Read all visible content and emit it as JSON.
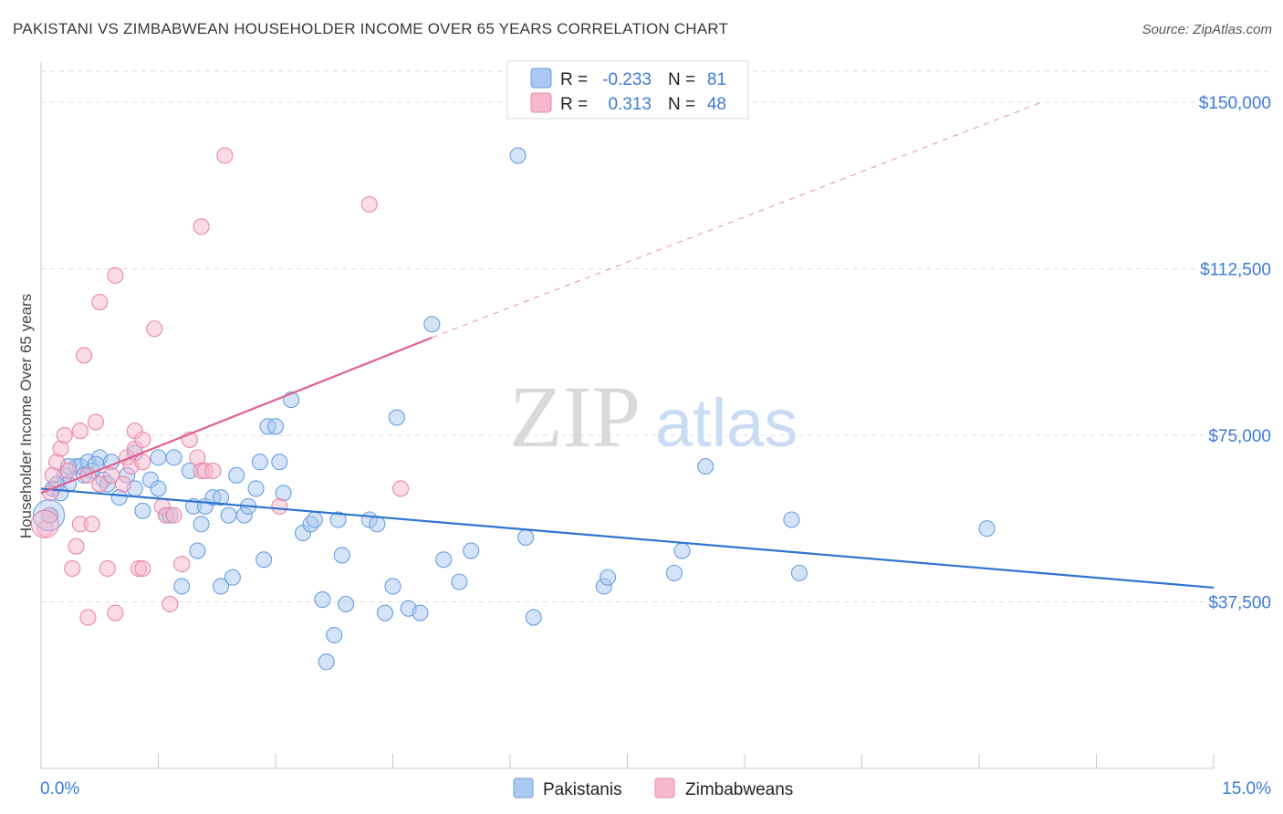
{
  "header": {
    "title": "PAKISTANI VS ZIMBABWEAN HOUSEHOLDER INCOME OVER 65 YEARS CORRELATION CHART",
    "source": "Source: ZipAtlas.com"
  },
  "legend_top": {
    "rows": [
      {
        "r_label": "R =",
        "r_value": "-0.233",
        "n_label": "N =",
        "n_value": "81",
        "color": "#aac8f2"
      },
      {
        "r_label": "R =",
        "r_value": "0.313",
        "n_label": "N =",
        "n_value": "48",
        "color": "#f7b8cc"
      }
    ]
  },
  "legend_bottom": [
    {
      "label": "Pakistanis",
      "color": "#aac8f2"
    },
    {
      "label": "Zimbabweans",
      "color": "#f7b8cc"
    }
  ],
  "watermark": {
    "zip": "ZIP",
    "atlas": "atlas"
  },
  "chart_data": {
    "type": "scatter",
    "title": "PAKISTANI VS ZIMBABWEAN HOUSEHOLDER INCOME OVER 65 YEARS CORRELATION CHART",
    "xlabel": "",
    "ylabel": "Householder Income Over 65 years",
    "xlim": [
      0,
      15
    ],
    "ylim": [
      0,
      157000
    ],
    "x_tick_labels": [
      "0.0%",
      "15.0%"
    ],
    "y_ticks": [
      37500,
      75000,
      112500,
      150000
    ],
    "y_tick_labels": [
      "$37,500",
      "$75,000",
      "$112,500",
      "$150,000"
    ],
    "grid": true,
    "legend_position": "top-center",
    "series": [
      {
        "name": "Pakistanis",
        "color": "#6a9fe0",
        "fill": "#aac8f2",
        "trend": {
          "x0": 0,
          "y0": 63000,
          "x1": 15,
          "y1": 40700
        },
        "points": [
          [
            0.12,
            57000
          ],
          [
            0.15,
            63000
          ],
          [
            0.3,
            66000
          ],
          [
            0.35,
            64000
          ],
          [
            0.45,
            68000
          ],
          [
            0.5,
            68000
          ],
          [
            0.6,
            69000
          ],
          [
            0.65,
            67000
          ],
          [
            0.75,
            70000
          ],
          [
            0.8,
            65000
          ],
          [
            0.9,
            69000
          ],
          [
            1.0,
            61000
          ],
          [
            1.1,
            66000
          ],
          [
            1.2,
            63000
          ],
          [
            1.2,
            71000
          ],
          [
            1.3,
            58000
          ],
          [
            1.4,
            65000
          ],
          [
            1.5,
            63000
          ],
          [
            1.5,
            70000
          ],
          [
            1.6,
            57000
          ],
          [
            1.65,
            57000
          ],
          [
            1.7,
            70000
          ],
          [
            1.8,
            41000
          ],
          [
            1.9,
            67000
          ],
          [
            1.95,
            59000
          ],
          [
            2.0,
            49000
          ],
          [
            2.05,
            55000
          ],
          [
            2.1,
            59000
          ],
          [
            2.2,
            61000
          ],
          [
            2.3,
            61000
          ],
          [
            2.3,
            41000
          ],
          [
            2.4,
            57000
          ],
          [
            2.45,
            43000
          ],
          [
            2.5,
            66000
          ],
          [
            2.6,
            57000
          ],
          [
            2.65,
            59000
          ],
          [
            2.75,
            63000
          ],
          [
            2.8,
            69000
          ],
          [
            2.85,
            47000
          ],
          [
            2.9,
            77000
          ],
          [
            3.0,
            77000
          ],
          [
            3.05,
            69000
          ],
          [
            3.1,
            62000
          ],
          [
            3.2,
            83000
          ],
          [
            3.35,
            53000
          ],
          [
            3.45,
            55000
          ],
          [
            3.5,
            56000
          ],
          [
            3.6,
            38000
          ],
          [
            3.75,
            30000
          ],
          [
            3.8,
            56000
          ],
          [
            3.85,
            48000
          ],
          [
            3.9,
            37000
          ],
          [
            4.2,
            56000
          ],
          [
            4.3,
            55000
          ],
          [
            4.4,
            35000
          ],
          [
            4.5,
            41000
          ],
          [
            4.55,
            79000
          ],
          [
            4.7,
            36000
          ],
          [
            4.85,
            35000
          ],
          [
            5.0,
            100000
          ],
          [
            5.15,
            47000
          ],
          [
            5.35,
            42000
          ],
          [
            5.5,
            49000
          ],
          [
            6.1,
            138000
          ],
          [
            6.2,
            52000
          ],
          [
            6.3,
            34000
          ],
          [
            7.2,
            41000
          ],
          [
            7.25,
            43000
          ],
          [
            8.1,
            44000
          ],
          [
            8.2,
            49000
          ],
          [
            8.5,
            68000
          ],
          [
            9.6,
            56000
          ],
          [
            9.7,
            44000
          ],
          [
            12.1,
            54000
          ],
          [
            0.2,
            64000
          ],
          [
            0.25,
            62000
          ],
          [
            0.55,
            66000
          ],
          [
            0.7,
            68500
          ],
          [
            3.65,
            24000
          ],
          [
            0.35,
            68000
          ],
          [
            0.85,
            64000
          ]
        ]
      },
      {
        "name": "Zimbabweans",
        "color": "#e888a8",
        "fill": "#f7b8cc",
        "trend": {
          "x0": 0,
          "y0": 62000,
          "x1": 5.0,
          "y1": 97000
        },
        "trend_dashed_to": {
          "x": 12.8,
          "y": 150000
        },
        "points": [
          [
            0.05,
            54000
          ],
          [
            0.1,
            57000
          ],
          [
            0.12,
            62000
          ],
          [
            0.15,
            66000
          ],
          [
            0.2,
            69000
          ],
          [
            0.25,
            72000
          ],
          [
            0.3,
            75000
          ],
          [
            0.35,
            67000
          ],
          [
            0.4,
            45000
          ],
          [
            0.45,
            50000
          ],
          [
            0.5,
            55000
          ],
          [
            0.5,
            76000
          ],
          [
            0.55,
            93000
          ],
          [
            0.6,
            34000
          ],
          [
            0.6,
            66000
          ],
          [
            0.65,
            55000
          ],
          [
            0.7,
            78000
          ],
          [
            0.75,
            64000
          ],
          [
            0.75,
            105000
          ],
          [
            0.85,
            45000
          ],
          [
            0.9,
            66000
          ],
          [
            0.95,
            35000
          ],
          [
            0.95,
            111000
          ],
          [
            1.05,
            64000
          ],
          [
            1.1,
            70000
          ],
          [
            1.15,
            68000
          ],
          [
            1.2,
            72000
          ],
          [
            1.2,
            76000
          ],
          [
            1.25,
            45000
          ],
          [
            1.3,
            74000
          ],
          [
            1.3,
            69000
          ],
          [
            1.45,
            99000
          ],
          [
            1.55,
            59000
          ],
          [
            1.6,
            57000
          ],
          [
            1.65,
            37000
          ],
          [
            1.7,
            57000
          ],
          [
            1.8,
            46000
          ],
          [
            1.9,
            74000
          ],
          [
            2.0,
            70000
          ],
          [
            2.05,
            67000
          ],
          [
            2.05,
            122000
          ],
          [
            2.1,
            67000
          ],
          [
            2.2,
            67000
          ],
          [
            2.35,
            138000
          ],
          [
            3.05,
            59000
          ],
          [
            4.2,
            127000
          ],
          [
            4.6,
            63000
          ],
          [
            1.3,
            45000
          ]
        ]
      }
    ]
  }
}
